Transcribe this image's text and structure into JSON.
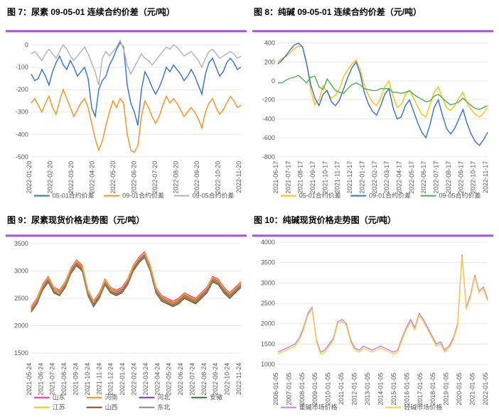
{
  "colors": {
    "bar": "#a154d6",
    "blue": "#2e6fd9",
    "orange": "#ff8c1a",
    "gray": "#b0b0b0",
    "yellow": "#ffc000",
    "green": "#4caf50",
    "pink": "#ff3399",
    "purple": "#8a2be2",
    "darkgreen": "#2e7d32",
    "jiangsu": "#ffc000",
    "shanxi": "#8b4513",
    "dongbei": "#888",
    "light_purple": "#c080e8",
    "light_orange": "#ffd040"
  },
  "chart7": {
    "title": "图 7：尿素 09-05-01 连续合约价差（元/吨）",
    "ylim": [
      -500,
      50
    ],
    "yticks": [
      -500,
      -400,
      -300,
      -200,
      -100,
      0
    ],
    "xlabels": [
      "2022-01-20",
      "2022-02-20",
      "2022-03-20",
      "2022-04-20",
      "2022-05-20",
      "2022-06-20",
      "2022-07-20",
      "2022-08-20",
      "2022-09-20",
      "2022-10-20",
      "2022-11-20"
    ],
    "series": [
      {
        "name": "05-01合约价差",
        "color": "blue",
        "data": [
          -130,
          -160,
          -150,
          -110,
          -140,
          -180,
          -120,
          -80,
          -50,
          -90,
          -110,
          -70,
          -100,
          -140,
          -120,
          -100,
          -150,
          -280,
          -320,
          -200,
          -160,
          -140,
          -90,
          -60,
          -20,
          10,
          -10,
          -180,
          -260,
          -300,
          -360,
          -200,
          -120,
          -150,
          -190,
          -220,
          -190,
          -150,
          -100,
          -120,
          -90,
          -110,
          -130,
          -160,
          -140,
          -110,
          -140,
          -180,
          -220,
          -130,
          -80,
          -60,
          -100,
          -140,
          -120,
          -80,
          -60,
          -80,
          -110,
          -100
        ]
      },
      {
        "name": "09-01合约价差",
        "color": "orange",
        "data": [
          -260,
          -240,
          -270,
          -300,
          -260,
          -230,
          -280,
          -310,
          -250,
          -200,
          -240,
          -280,
          -320,
          -290,
          -260,
          -240,
          -280,
          -350,
          -420,
          -470,
          -430,
          -360,
          -300,
          -250,
          -280,
          -240,
          -260,
          -400,
          -470,
          -480,
          -450,
          -320,
          -250,
          -280,
          -320,
          -350,
          -320,
          -270,
          -230,
          -260,
          -240,
          -260,
          -290,
          -320,
          -300,
          -280,
          -300,
          -330,
          -370,
          -300,
          -260,
          -240,
          -280,
          -310,
          -290,
          -260,
          -230,
          -250,
          -280,
          -270
        ]
      },
      {
        "name": "09-05合约价差",
        "color": "gray",
        "data": [
          -40,
          -30,
          -50,
          -70,
          -40,
          -20,
          -40,
          -60,
          -30,
          0,
          -20,
          -50,
          -70,
          -50,
          -30,
          -10,
          -40,
          -80,
          -120,
          -180,
          -60,
          -30,
          -50,
          -30,
          -10,
          20,
          -20,
          -90,
          -130,
          -100,
          -70,
          -40,
          -60,
          -70,
          -90,
          -70,
          -50,
          -30,
          -10,
          -20,
          0,
          -10,
          -30,
          -50,
          -40,
          -30,
          -50,
          -70,
          -100,
          -60,
          -30,
          -20,
          -40,
          -60,
          -50,
          -40,
          -30,
          -40,
          -60,
          -50
        ]
      }
    ]
  },
  "chart8": {
    "title": "图 8：纯碱 09-05-01 连续合约价差（元/吨）",
    "ylim": [
      -800,
      500
    ],
    "yticks": [
      -800,
      -600,
      -400,
      -200,
      0,
      200,
      400
    ],
    "xlabels": [
      "2021-06-17",
      "2021-07-17",
      "2021-08-17",
      "2021-09-17",
      "2021-10-17",
      "2021-11-17",
      "2021-12-17",
      "2022-01-17",
      "2022-02-17",
      "2022-03-17",
      "2022-04-17",
      "2022-05-17",
      "2022-06-17",
      "2022-07-17",
      "2022-08-17",
      "2022-09-17",
      "2022-10-17",
      "2022-11-17"
    ],
    "series": [
      {
        "name": "05-01合约价差",
        "color": "yellow",
        "data": [
          200,
          240,
          260,
          300,
          340,
          370,
          360,
          200,
          -100,
          -250,
          -200,
          -50,
          -120,
          -180,
          -150,
          -80,
          50,
          120,
          180,
          220,
          120,
          -40,
          -150,
          -220,
          -260,
          -180,
          -60,
          0,
          -160,
          -280,
          -250,
          -140,
          -100,
          -180,
          -270,
          -350,
          -380,
          -250,
          -120,
          -60,
          -180,
          -280,
          -310,
          -260,
          -180,
          -120,
          -230,
          -300,
          -350,
          -380,
          -340,
          -280
        ]
      },
      {
        "name": "09-01合约价差",
        "color": "blue",
        "data": [
          180,
          220,
          270,
          330,
          380,
          400,
          360,
          180,
          -40,
          -180,
          -260,
          -140,
          -100,
          -220,
          -260,
          -200,
          -80,
          40,
          140,
          200,
          80,
          -120,
          -240,
          -320,
          -360,
          -260,
          -140,
          -80,
          -280,
          -400,
          -380,
          -260,
          -200,
          -320,
          -440,
          -540,
          -600,
          -460,
          -280,
          -200,
          -360,
          -500,
          -560,
          -500,
          -400,
          -300,
          -450,
          -560,
          -640,
          -680,
          -620,
          -540
        ]
      },
      {
        "name": "09-05合约价差",
        "color": "green",
        "data": [
          -20,
          -20,
          10,
          30,
          40,
          60,
          20,
          -20,
          40,
          50,
          -60,
          -90,
          20,
          -40,
          -100,
          -120,
          -130,
          -80,
          -40,
          -20,
          -40,
          -80,
          -90,
          -100,
          -100,
          -80,
          -80,
          -80,
          -120,
          -120,
          -130,
          -120,
          -100,
          -140,
          -170,
          -190,
          -220,
          -210,
          -160,
          -140,
          -180,
          -220,
          -250,
          -240,
          -220,
          -180,
          -220,
          -260,
          -290,
          -300,
          -280,
          -260
        ]
      }
    ]
  },
  "chart9": {
    "title": "图 9：尿素现货价格走势图（元/吨）",
    "ylim": [
      1400,
      3600
    ],
    "yticks": [
      1500,
      2000,
      2500,
      3000,
      3500
    ],
    "xlabels": [
      "2021-05-24",
      "2021-06-24",
      "2021-07-24",
      "2021-08-24",
      "2021-09-24",
      "2021-10-24",
      "2021-11-24",
      "2021-12-24",
      "2022-01-24",
      "2022-02-24",
      "2022-03-24",
      "2022-04-24",
      "2022-05-24",
      "2022-06-24",
      "2022-07-24",
      "2022-08-24",
      "2022-09-24",
      "2022-10-24",
      "2022-11-24"
    ],
    "series": [
      {
        "name": "山东",
        "color": "pink",
        "data": [
          2350,
          2500,
          2750,
          2900,
          2700,
          2650,
          2800,
          3050,
          3200,
          3100,
          2650,
          2450,
          2600,
          2850,
          2700,
          2650,
          2700,
          2850,
          3100,
          3250,
          3350,
          3100,
          2700,
          2550,
          2500,
          2450,
          2500,
          2600,
          2550,
          2500,
          2600,
          2700,
          2900,
          2850,
          2700,
          2600,
          2700,
          2800
        ]
      },
      {
        "name": "河南",
        "color": "orange",
        "data": [
          2300,
          2450,
          2700,
          2850,
          2650,
          2600,
          2750,
          3000,
          3150,
          3050,
          2600,
          2400,
          2550,
          2800,
          2650,
          2600,
          2650,
          2800,
          3050,
          3200,
          3300,
          3050,
          2650,
          2500,
          2450,
          2400,
          2450,
          2550,
          2500,
          2450,
          2550,
          2650,
          2850,
          2800,
          2650,
          2550,
          2650,
          2750
        ]
      },
      {
        "name": "河北",
        "color": "purple",
        "data": [
          2320,
          2470,
          2720,
          2870,
          2680,
          2620,
          2770,
          3020,
          3170,
          3070,
          2620,
          2420,
          2570,
          2820,
          2680,
          2620,
          2670,
          2820,
          3070,
          3220,
          3320,
          3070,
          2670,
          2520,
          2470,
          2420,
          2470,
          2570,
          2520,
          2470,
          2570,
          2670,
          2870,
          2820,
          2670,
          2570,
          2670,
          2770
        ]
      },
      {
        "name": "安徽",
        "color": "darkgreen",
        "data": [
          2280,
          2420,
          2680,
          2830,
          2630,
          2570,
          2730,
          2980,
          3130,
          3030,
          2580,
          2380,
          2530,
          2780,
          2630,
          2580,
          2630,
          2780,
          3030,
          3180,
          3280,
          3030,
          2630,
          2480,
          2430,
          2380,
          2430,
          2530,
          2480,
          2430,
          2530,
          2630,
          2830,
          2780,
          2630,
          2530,
          2630,
          2730
        ]
      },
      {
        "name": "江苏",
        "color": "jiangsu",
        "data": [
          2330,
          2480,
          2730,
          2880,
          2690,
          2630,
          2780,
          3030,
          3180,
          3080,
          2630,
          2430,
          2580,
          2830,
          2690,
          2630,
          2680,
          2830,
          3080,
          3230,
          3330,
          3080,
          2680,
          2530,
          2480,
          2430,
          2480,
          2580,
          2530,
          2480,
          2580,
          2680,
          2880,
          2830,
          2680,
          2580,
          2680,
          2780
        ]
      },
      {
        "name": "山西",
        "color": "shanxi",
        "data": [
          2250,
          2400,
          2650,
          2800,
          2600,
          2550,
          2700,
          2950,
          3100,
          3000,
          2550,
          2350,
          2500,
          2750,
          2600,
          2550,
          2600,
          2750,
          3000,
          3150,
          3250,
          3000,
          2600,
          2450,
          2400,
          2350,
          2400,
          2500,
          2450,
          2400,
          2500,
          2600,
          2800,
          2750,
          2600,
          2500,
          2600,
          2700
        ]
      },
      {
        "name": "东北",
        "color": "dongbei",
        "data": [
          2270,
          2420,
          2680,
          2830,
          2620,
          2570,
          2720,
          2970,
          3120,
          3020,
          2570,
          2370,
          2520,
          2770,
          2620,
          2570,
          2620,
          2770,
          3020,
          3170,
          3270,
          3020,
          2620,
          2470,
          2420,
          2370,
          2420,
          2520,
          2470,
          2420,
          2520,
          2620,
          2820,
          2770,
          2620,
          2520,
          2620,
          2720
        ]
      }
    ]
  },
  "chart10": {
    "title": "图 10：纯碱现货价格走势图（元/吨）",
    "ylim": [
      900,
      4100
    ],
    "yticks": [
      1000,
      1500,
      2000,
      2500,
      3000,
      3500,
      4000
    ],
    "xlabels": [
      "2006-01-05",
      "2007-01-05",
      "2008-01-05",
      "2009-01-05",
      "2010-01-05",
      "2011-01-05",
      "2012-01-05",
      "2013-01-05",
      "2014-01-05",
      "2015-01-05",
      "2016-01-05",
      "2017-01-05",
      "2018-01-05",
      "2019-01-05",
      "2020-01-05",
      "2021-01-05",
      "2022-01-05"
    ],
    "series": [
      {
        "name": "重碱市场价格",
        "color": "light_purple",
        "data": [
          1300,
          1350,
          1400,
          1450,
          1500,
          1650,
          1900,
          2250,
          2400,
          1600,
          1300,
          1350,
          1500,
          1650,
          2050,
          2100,
          2000,
          1600,
          1400,
          1350,
          1450,
          1400,
          1350,
          1400,
          1450,
          1400,
          1350,
          1300,
          1350,
          1650,
          1900,
          2100,
          1900,
          2250,
          2100,
          1900,
          1700,
          1500,
          1550,
          1350,
          1450,
          1650,
          2000,
          3700,
          2400,
          2700,
          3200,
          2800,
          2900,
          2600
        ]
      },
      {
        "name": "轻碱市场价格",
        "color": "light_orange",
        "data": [
          1250,
          1300,
          1350,
          1400,
          1450,
          1600,
          1850,
          2200,
          2350,
          1550,
          1250,
          1300,
          1450,
          1600,
          2000,
          2050,
          1950,
          1550,
          1350,
          1300,
          1400,
          1350,
          1300,
          1350,
          1400,
          1350,
          1300,
          1250,
          1300,
          1600,
          1850,
          2050,
          1850,
          2200,
          2050,
          1850,
          1650,
          1450,
          1500,
          1300,
          1400,
          1600,
          1950,
          3650,
          2350,
          2650,
          3150,
          2750,
          2850,
          2550
        ]
      }
    ]
  }
}
